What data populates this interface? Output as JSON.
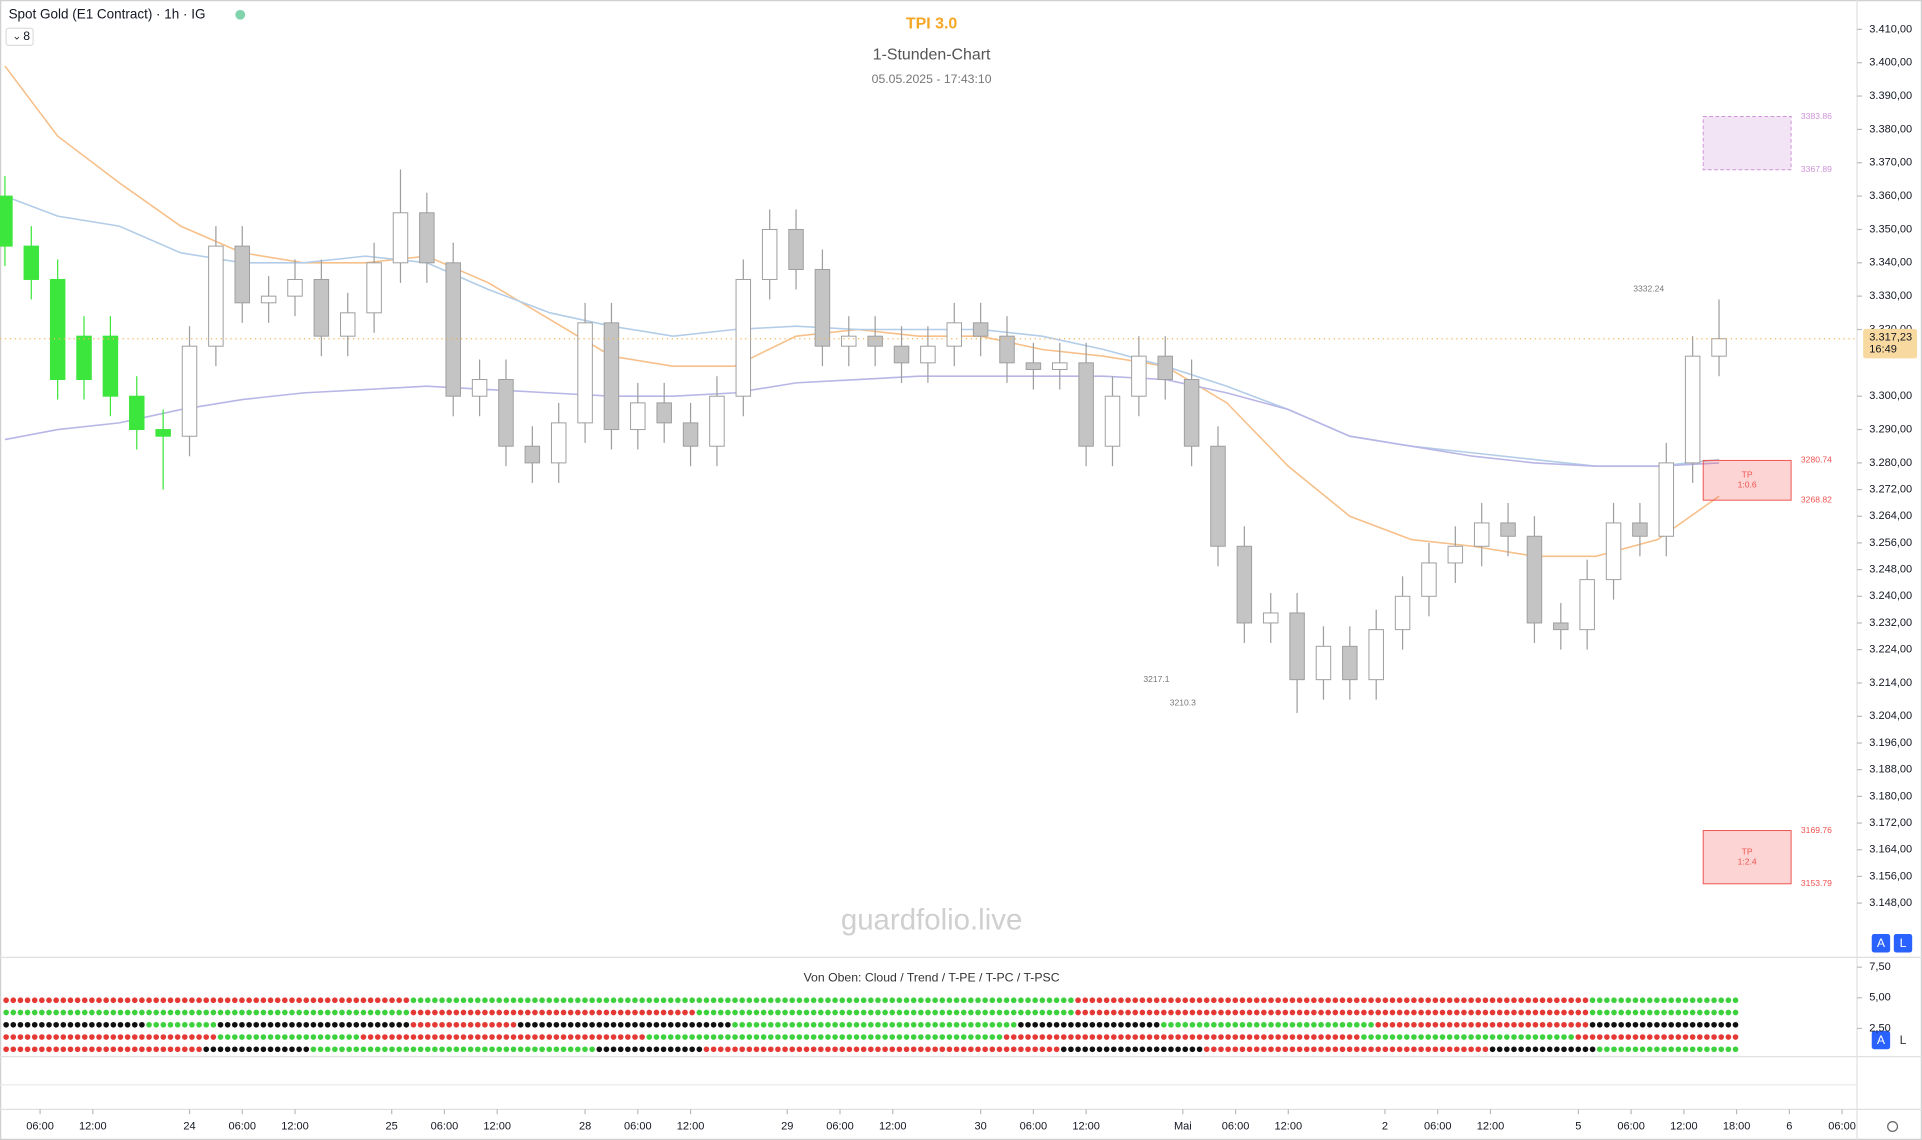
{
  "header": {
    "symbol": "Spot Gold (E1 Contract) · 1h · IG",
    "legend_count": "8",
    "buttons": [
      "A",
      "L"
    ]
  },
  "chart_data": {
    "type": "candlestick",
    "title": "TPI 3.0",
    "subtitle": "1-Stunden-Chart",
    "timestamp": "05.05.2025 - 17:43:10",
    "watermark": "guardfolio.live",
    "x": [
      0,
      3,
      6,
      9,
      12,
      15,
      18,
      21,
      24,
      27,
      30,
      33,
      36,
      39,
      42,
      45,
      48,
      51,
      54,
      57,
      60,
      63,
      66,
      69,
      72,
      75,
      78,
      81,
      84,
      87,
      90,
      93,
      96,
      99,
      102,
      105,
      108,
      111,
      114,
      117,
      120,
      123,
      126,
      129,
      132,
      135,
      138,
      141,
      144,
      147,
      150,
      153,
      156,
      159,
      162,
      165,
      168,
      171,
      174,
      177,
      180,
      183,
      186,
      189,
      192,
      195
    ],
    "open": [
      3360,
      3345,
      3335,
      3305,
      3318,
      3300,
      3290,
      3288,
      3315,
      3345,
      3328,
      3330,
      3335,
      3318,
      3325,
      3340,
      3355,
      3340,
      3300,
      3305,
      3285,
      3280,
      3292,
      3322,
      3290,
      3298,
      3292,
      3285,
      3300,
      3335,
      3350,
      3338,
      3315,
      3318,
      3315,
      3310,
      3315,
      3322,
      3318,
      3310,
      3308,
      3310,
      3285,
      3300,
      3312,
      3305,
      3285,
      3255,
      3232,
      3235,
      3215,
      3225,
      3215,
      3230,
      3240,
      3250,
      3255,
      3262,
      3258,
      3232,
      3230,
      3245,
      3262,
      3258,
      3280,
      3312
    ],
    "high": [
      3366,
      3351,
      3341,
      3324,
      3324,
      3306,
      3296,
      3321,
      3351,
      3351,
      3336,
      3341,
      3341,
      3331,
      3346,
      3368,
      3361,
      3346,
      3311,
      3311,
      3291,
      3298,
      3328,
      3328,
      3304,
      3304,
      3298,
      3306,
      3341,
      3356,
      3356,
      3344,
      3324,
      3324,
      3321,
      3321,
      3328,
      3328,
      3324,
      3316,
      3316,
      3316,
      3306,
      3318,
      3318,
      3311,
      3291,
      3261,
      3241,
      3241,
      3231,
      3231,
      3236,
      3246,
      3256,
      3261,
      3268,
      3268,
      3264,
      3238,
      3251,
      3268,
      3268,
      3286,
      3318,
      3329
    ],
    "low": [
      3339,
      3329,
      3299,
      3299,
      3294,
      3284,
      3272,
      3282,
      3309,
      3322,
      3322,
      3324,
      3312,
      3312,
      3319,
      3334,
      3334,
      3294,
      3294,
      3279,
      3274,
      3274,
      3286,
      3284,
      3284,
      3286,
      3279,
      3279,
      3294,
      3329,
      3332,
      3309,
      3309,
      3309,
      3304,
      3304,
      3309,
      3312,
      3304,
      3302,
      3302,
      3279,
      3279,
      3294,
      3299,
      3279,
      3249,
      3226,
      3226,
      3205,
      3209,
      3209,
      3209,
      3224,
      3234,
      3244,
      3249,
      3252,
      3226,
      3224,
      3224,
      3239,
      3252,
      3252,
      3274,
      3306
    ],
    "close": [
      3345,
      3335,
      3305,
      3318,
      3300,
      3290,
      3288,
      3315,
      3345,
      3328,
      3330,
      3335,
      3318,
      3325,
      3340,
      3355,
      3340,
      3300,
      3305,
      3285,
      3280,
      3292,
      3322,
      3290,
      3298,
      3292,
      3285,
      3300,
      3335,
      3350,
      3338,
      3315,
      3318,
      3315,
      3310,
      3315,
      3322,
      3318,
      3310,
      3308,
      3310,
      3285,
      3300,
      3312,
      3305,
      3285,
      3255,
      3232,
      3235,
      3215,
      3225,
      3215,
      3230,
      3240,
      3250,
      3255,
      3262,
      3258,
      3232,
      3230,
      3245,
      3262,
      3258,
      3280,
      3312,
      3317.23
    ],
    "colors": [
      "#3de63d",
      "#3de63d",
      "#3de63d",
      "#3de63d",
      "#3de63d",
      "#3de63d",
      "#3de63d",
      "#ffffff",
      "#ffffff",
      "#c4c4c4",
      "#ffffff",
      "#ffffff",
      "#c4c4c4",
      "#ffffff",
      "#ffffff",
      "#ffffff",
      "#c4c4c4",
      "#c4c4c4",
      "#ffffff",
      "#c4c4c4",
      "#c4c4c4",
      "#ffffff",
      "#ffffff",
      "#c4c4c4",
      "#ffffff",
      "#c4c4c4",
      "#c4c4c4",
      "#ffffff",
      "#ffffff",
      "#ffffff",
      "#c4c4c4",
      "#c4c4c4",
      "#ffffff",
      "#c4c4c4",
      "#c4c4c4",
      "#ffffff",
      "#ffffff",
      "#c4c4c4",
      "#c4c4c4",
      "#c4c4c4",
      "#ffffff",
      "#c4c4c4",
      "#ffffff",
      "#ffffff",
      "#c4c4c4",
      "#c4c4c4",
      "#c4c4c4",
      "#c4c4c4",
      "#ffffff",
      "#c4c4c4",
      "#ffffff",
      "#c4c4c4",
      "#ffffff",
      "#ffffff",
      "#ffffff",
      "#ffffff",
      "#ffffff",
      "#c4c4c4",
      "#c4c4c4",
      "#c4c4c4",
      "#ffffff",
      "#ffffff",
      "#c4c4c4",
      "#ffffff",
      "#ffffff",
      "#ffffff"
    ],
    "wick_color": "#9e9e9e",
    "lines": [
      {
        "color": "#f7c08a",
        "x": [
          0,
          6,
          13,
          20,
          27,
          34,
          41,
          48,
          55,
          62,
          69,
          76,
          83,
          90,
          97,
          104,
          111,
          118,
          125,
          132,
          139,
          146,
          153,
          160,
          167,
          174,
          181,
          188,
          195
        ],
        "values": [
          3399,
          3378,
          3364,
          3351,
          3343,
          3340,
          3340,
          3342,
          3334,
          3323,
          3312,
          3309,
          3309,
          3318,
          3320,
          3318,
          3318,
          3314,
          3312,
          3309,
          3298,
          3279,
          3264,
          3257,
          3255,
          3252,
          3252,
          3257,
          3270
        ]
      },
      {
        "color": "#b3cde8",
        "x": [
          0,
          6,
          13,
          20,
          27,
          34,
          41,
          48,
          55,
          62,
          69,
          76,
          83,
          90,
          97,
          104,
          111,
          118,
          125,
          132,
          139,
          146,
          153,
          160,
          167,
          174,
          181,
          188,
          195
        ],
        "values": [
          3360,
          3354,
          3351,
          3343,
          3340,
          3340,
          3342,
          3340,
          3332,
          3325,
          3321,
          3318,
          3320,
          3321,
          3320,
          3320,
          3320,
          3318,
          3314,
          3309,
          3303,
          3296,
          3288,
          3285,
          3283,
          3281,
          3279,
          3279,
          3281
        ]
      },
      {
        "color": "#b8b6e6",
        "x": [
          0,
          6,
          13,
          20,
          27,
          34,
          41,
          48,
          55,
          62,
          69,
          76,
          83,
          90,
          97,
          104,
          111,
          118,
          125,
          132,
          139,
          146,
          153,
          160,
          167,
          174,
          181,
          188,
          195
        ],
        "values": [
          3287,
          3290,
          3292,
          3296,
          3299,
          3301,
          3302,
          3303,
          3302,
          3301,
          3300,
          3300,
          3301,
          3304,
          3305,
          3306,
          3306,
          3306,
          3306,
          3305,
          3301,
          3296,
          3288,
          3285,
          3282,
          3280,
          3279,
          3279,
          3280
        ]
      }
    ],
    "annotations": [
      {
        "text": "3332.24",
        "x": 187,
        "y": 3332
      },
      {
        "text": "3217.1",
        "x": 131,
        "y": 3215
      },
      {
        "text": "3210.3",
        "x": 134,
        "y": 3208
      }
    ],
    "zones": [
      {
        "top": 3383.86,
        "bottom": 3367.89,
        "x": [
          193.2,
          203.2
        ],
        "color": "#ce93d8",
        "dashed": true
      },
      {
        "top": 3280.74,
        "bottom": 3268.82,
        "x": [
          193.2,
          203.2
        ],
        "color": "#ef5350",
        "lines": [
          "TP",
          "1:0.6"
        ]
      },
      {
        "top": 3169.76,
        "bottom": 3153.79,
        "x": [
          193.2,
          203.2
        ],
        "color": "#ef5350",
        "lines": [
          "TP",
          "1:2.4"
        ]
      }
    ],
    "price_tag": {
      "value": 3317.23,
      "label": "3.317,23",
      "countdown": "16:49",
      "color": "#f8d9a0"
    },
    "xlim": [
      -0.56,
      210.7
    ],
    "ylim": [
      3132.1,
      3418.8
    ],
    "xticks": [
      {
        "value": 4,
        "label": "06:00"
      },
      {
        "value": 10,
        "label": "12:00"
      },
      {
        "value": 21,
        "label": "24"
      },
      {
        "value": 27,
        "label": "06:00"
      },
      {
        "value": 33,
        "label": "12:00"
      },
      {
        "value": 44,
        "label": "25"
      },
      {
        "value": 50,
        "label": "06:00"
      },
      {
        "value": 56,
        "label": "12:00"
      },
      {
        "value": 66,
        "label": "28"
      },
      {
        "value": 72,
        "label": "06:00"
      },
      {
        "value": 78,
        "label": "12:00"
      },
      {
        "value": 89,
        "label": "29"
      },
      {
        "value": 95,
        "label": "06:00"
      },
      {
        "value": 101,
        "label": "12:00"
      },
      {
        "value": 111,
        "label": "30"
      },
      {
        "value": 117,
        "label": "06:00"
      },
      {
        "value": 123,
        "label": "12:00"
      },
      {
        "value": 134,
        "label": "Mai"
      },
      {
        "value": 140,
        "label": "06:00"
      },
      {
        "value": 146,
        "label": "12:00"
      },
      {
        "value": 157,
        "label": "2"
      },
      {
        "value": 163,
        "label": "06:00"
      },
      {
        "value": 169,
        "label": "12:00"
      },
      {
        "value": 179,
        "label": "5"
      },
      {
        "value": 185,
        "label": "06:00"
      },
      {
        "value": 191,
        "label": "12:00"
      },
      {
        "value": 197,
        "label": "18:00"
      },
      {
        "value": 203,
        "label": "6"
      },
      {
        "value": 209,
        "label": "06:00"
      }
    ],
    "yticks": [
      {
        "value": 3410,
        "label": "3.410,00"
      },
      {
        "value": 3400,
        "label": "3.400,00"
      },
      {
        "value": 3390,
        "label": "3.390,00"
      },
      {
        "value": 3380,
        "label": "3.380,00"
      },
      {
        "value": 3370,
        "label": "3.370,00"
      },
      {
        "value": 3360,
        "label": "3.360,00"
      },
      {
        "value": 3350,
        "label": "3.350,00"
      },
      {
        "value": 3340,
        "label": "3.340,00"
      },
      {
        "value": 3330,
        "label": "3.330,00"
      },
      {
        "value": 3320,
        "label": "3.320,00"
      },
      {
        "value": 3300,
        "label": "3.300,00"
      },
      {
        "value": 3290,
        "label": "3.290,00"
      },
      {
        "value": 3280,
        "label": "3.280,00"
      },
      {
        "value": 3272,
        "label": "3.272,00"
      },
      {
        "value": 3264,
        "label": "3.264,00"
      },
      {
        "value": 3256,
        "label": "3.256,00"
      },
      {
        "value": 3248,
        "label": "3.248,00"
      },
      {
        "value": 3240,
        "label": "3.240,00"
      },
      {
        "value": 3232,
        "label": "3.232,00"
      },
      {
        "value": 3224,
        "label": "3.224,00"
      },
      {
        "value": 3214,
        "label": "3.214,00"
      },
      {
        "value": 3204,
        "label": "3.204,00"
      },
      {
        "value": 3196,
        "label": "3.196,00"
      },
      {
        "value": 3188,
        "label": "3.188,00"
      },
      {
        "value": 3180,
        "label": "3.180,00"
      },
      {
        "value": 3172,
        "label": "3.172,00"
      },
      {
        "value": 3164,
        "label": "3.164,00"
      },
      {
        "value": 3156,
        "label": "3.156,00"
      },
      {
        "value": 3148,
        "label": "3.148,00"
      }
    ],
    "indicator": {
      "title": "Von Oben: Cloud / Trend / T-PE / T-PC / T-PSC",
      "ylim": [
        0.4,
        8.2
      ],
      "yticks": [
        {
          "value": 7.5,
          "label": "7,50"
        },
        {
          "value": 5,
          "label": "5,00"
        },
        {
          "value": 2.5,
          "label": "2,50"
        }
      ],
      "palette": {
        "r": "#e53935",
        "g": "#3ed13e",
        "k": "#111111"
      },
      "rows": [
        [
          [
            "r",
            57
          ],
          [
            "g",
            93
          ],
          [
            "r",
            72
          ],
          [
            "g",
            21
          ]
        ],
        [
          [
            "g",
            57
          ],
          [
            "r",
            40
          ],
          [
            "g",
            53
          ],
          [
            "r",
            72
          ],
          [
            "g",
            21
          ]
        ],
        [
          [
            "k",
            20
          ],
          [
            "g",
            10
          ],
          [
            "k",
            27
          ],
          [
            "r",
            15
          ],
          [
            "k",
            30
          ],
          [
            "g",
            40
          ],
          [
            "k",
            20
          ],
          [
            "g",
            30
          ],
          [
            "r",
            30
          ],
          [
            "k",
            21
          ]
        ],
        [
          [
            "r",
            30
          ],
          [
            "g",
            20
          ],
          [
            "r",
            40
          ],
          [
            "g",
            50
          ],
          [
            "r",
            50
          ],
          [
            "g",
            30
          ],
          [
            "r",
            23
          ]
        ],
        [
          [
            "r",
            28
          ],
          [
            "k",
            15
          ],
          [
            "g",
            40
          ],
          [
            "k",
            15
          ],
          [
            "r",
            50
          ],
          [
            "k",
            20
          ],
          [
            "r",
            40
          ],
          [
            "k",
            15
          ],
          [
            "g",
            20
          ]
        ]
      ]
    }
  }
}
